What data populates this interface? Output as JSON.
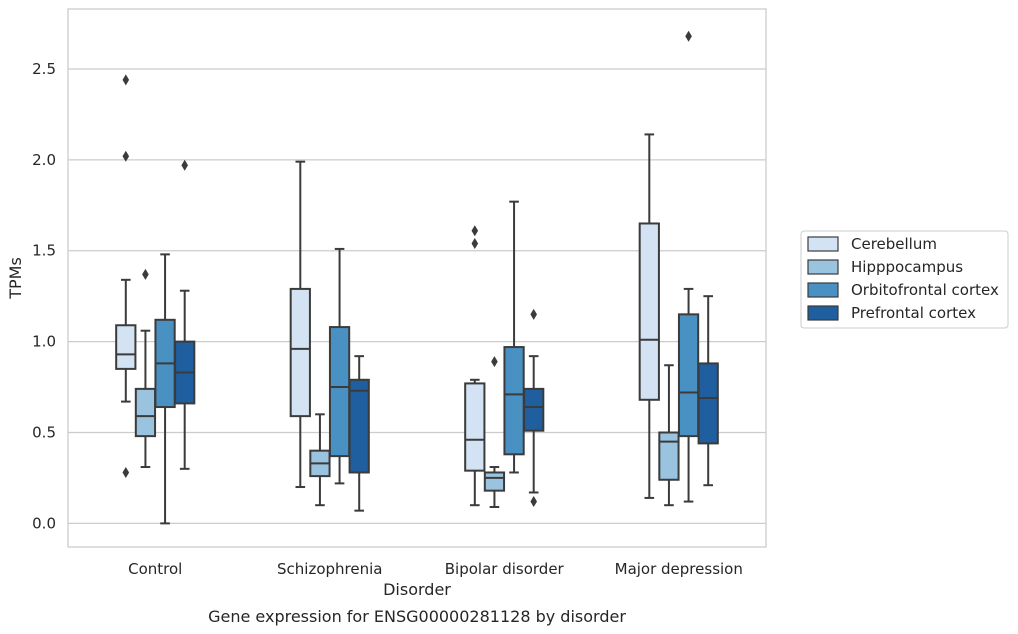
{
  "chart_data": {
    "type": "box",
    "title": "",
    "caption": "Gene expression for ENSG00000281128 by disorder",
    "xlabel": "Disorder",
    "ylabel": "TPMs",
    "ylim": [
      -0.13,
      2.83
    ],
    "yticks": [
      0.0,
      0.5,
      1.0,
      1.5,
      2.0,
      2.5
    ],
    "ytick_labels": [
      "0.0",
      "0.5",
      "1.0",
      "1.5",
      "2.0",
      "2.5"
    ],
    "grid": "horizontal",
    "legend_position": "right",
    "categories": [
      "Control",
      "Schizophrenia",
      "Bipolar disorder",
      "Major depression"
    ],
    "series": [
      {
        "name": "Cerebellum",
        "color": "#d4e3f3",
        "boxes": [
          {
            "whisker_low": 0.67,
            "q1": 0.85,
            "median": 0.93,
            "q3": 1.09,
            "whisker_high": 1.34,
            "outliers": [
              2.44,
              2.02,
              0.28
            ]
          },
          {
            "whisker_low": 0.2,
            "q1": 0.59,
            "median": 0.96,
            "q3": 1.29,
            "whisker_high": 1.99,
            "outliers": []
          },
          {
            "whisker_low": 0.1,
            "q1": 0.29,
            "median": 0.46,
            "q3": 0.77,
            "whisker_high": 0.79,
            "outliers": [
              1.61,
              1.54
            ]
          },
          {
            "whisker_low": 0.14,
            "q1": 0.68,
            "median": 1.01,
            "q3": 1.65,
            "whisker_high": 2.14,
            "outliers": []
          }
        ]
      },
      {
        "name": "Hipppocampus",
        "color": "#99c3df",
        "boxes": [
          {
            "whisker_low": 0.31,
            "q1": 0.48,
            "median": 0.59,
            "q3": 0.74,
            "whisker_high": 1.06,
            "outliers": [
              1.37
            ]
          },
          {
            "whisker_low": 0.1,
            "q1": 0.26,
            "median": 0.33,
            "q3": 0.4,
            "whisker_high": 0.6,
            "outliers": []
          },
          {
            "whisker_low": 0.09,
            "q1": 0.18,
            "median": 0.25,
            "q3": 0.28,
            "whisker_high": 0.31,
            "outliers": [
              0.89
            ]
          },
          {
            "whisker_low": 0.1,
            "q1": 0.24,
            "median": 0.45,
            "q3": 0.5,
            "whisker_high": 0.87,
            "outliers": []
          }
        ]
      },
      {
        "name": "Orbitofrontal cortex",
        "color": "#4a91c3",
        "boxes": [
          {
            "whisker_low": 0.0,
            "q1": 0.64,
            "median": 0.88,
            "q3": 1.12,
            "whisker_high": 1.48,
            "outliers": []
          },
          {
            "whisker_low": 0.22,
            "q1": 0.37,
            "median": 0.75,
            "q3": 1.08,
            "whisker_high": 1.51,
            "outliers": []
          },
          {
            "whisker_low": 0.28,
            "q1": 0.38,
            "median": 0.71,
            "q3": 0.97,
            "whisker_high": 1.77,
            "outliers": []
          },
          {
            "whisker_low": 0.12,
            "q1": 0.48,
            "median": 0.72,
            "q3": 1.15,
            "whisker_high": 1.29,
            "outliers": [
              2.68
            ]
          }
        ]
      },
      {
        "name": "Prefrontal cortex",
        "color": "#1f5e9f",
        "boxes": [
          {
            "whisker_low": 0.3,
            "q1": 0.66,
            "median": 0.83,
            "q3": 1.0,
            "whisker_high": 1.28,
            "outliers": [
              1.97
            ]
          },
          {
            "whisker_low": 0.07,
            "q1": 0.28,
            "median": 0.73,
            "q3": 0.79,
            "whisker_high": 0.92,
            "outliers": []
          },
          {
            "whisker_low": 0.17,
            "q1": 0.51,
            "median": 0.64,
            "q3": 0.74,
            "whisker_high": 0.92,
            "outliers": [
              1.15,
              0.12
            ]
          },
          {
            "whisker_low": 0.21,
            "q1": 0.44,
            "median": 0.69,
            "q3": 0.88,
            "whisker_high": 1.25,
            "outliers": []
          }
        ]
      }
    ]
  }
}
